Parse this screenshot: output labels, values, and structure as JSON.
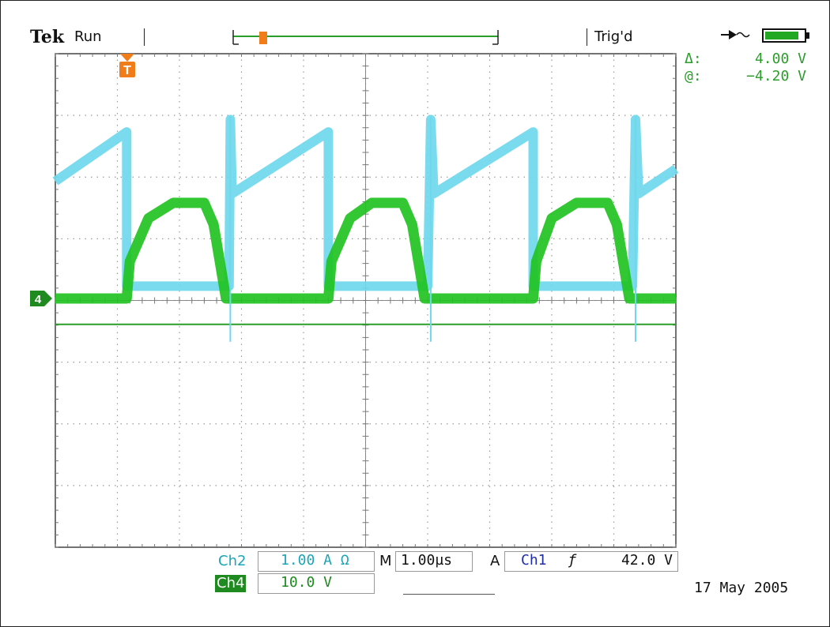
{
  "header": {
    "brand": "Tek",
    "run_state": "Run",
    "trigger_status": "Trig'd",
    "trigger_marker": "T"
  },
  "cursor_readout": {
    "delta_label": "Δ:",
    "delta_value": "4.00 V",
    "at_label": "@:",
    "at_value": "−4.20 V"
  },
  "ground_marker": "4",
  "footer": {
    "ch2_label": "Ch2",
    "ch2_scale": "1.00 A Ω",
    "ch4_label": "Ch4",
    "ch4_scale": "10.0 V",
    "timebase_label": "M",
    "timebase_value": "1.00µs",
    "trigger_mode": "A",
    "trigger_source": "Ch1",
    "trigger_slope": "ƒ",
    "trigger_level": "42.0 V",
    "date": "17 May 2005"
  },
  "colors": {
    "ch2": "#6ed8ec",
    "ch4": "#22c322",
    "cursor": "#2a9d2a",
    "trigger": "#f07d1a",
    "ch1": "#1e2ea8"
  },
  "chart_data": {
    "type": "line",
    "title": "",
    "xlabel": "",
    "ylabel": "",
    "grid": true,
    "x_divisions": 10,
    "y_divisions": 8,
    "xlim": [
      0,
      10
    ],
    "ylim": [
      -4,
      4
    ],
    "period_div": 3.25,
    "series": [
      {
        "channel": "Ch2",
        "note": "inductor current sawtooth (div)",
        "points": [
          [
            0,
            1.9
          ],
          [
            1.15,
            2.7
          ],
          [
            1.15,
            0.2
          ],
          [
            2.8,
            0.2
          ],
          [
            2.82,
            2.9
          ],
          [
            2.85,
            1.7
          ],
          [
            4.4,
            2.7
          ],
          [
            4.4,
            0.2
          ],
          [
            6.0,
            0.2
          ],
          [
            6.05,
            2.9
          ],
          [
            6.1,
            1.7
          ],
          [
            7.7,
            2.7
          ],
          [
            7.7,
            0.2
          ],
          [
            9.3,
            0.2
          ],
          [
            9.35,
            2.9
          ],
          [
            9.4,
            1.7
          ],
          [
            10,
            2.1
          ]
        ]
      },
      {
        "channel": "Ch4",
        "note": "switch-node voltage pulses (div)",
        "points": [
          [
            0,
            0
          ],
          [
            1.15,
            0
          ],
          [
            1.2,
            0.6
          ],
          [
            1.5,
            1.3
          ],
          [
            1.9,
            1.55
          ],
          [
            2.4,
            1.55
          ],
          [
            2.55,
            1.2
          ],
          [
            2.75,
            0
          ],
          [
            4.4,
            0
          ],
          [
            4.45,
            0.6
          ],
          [
            4.75,
            1.3
          ],
          [
            5.1,
            1.55
          ],
          [
            5.6,
            1.55
          ],
          [
            5.75,
            1.2
          ],
          [
            5.95,
            0
          ],
          [
            7.7,
            0
          ],
          [
            7.75,
            0.6
          ],
          [
            8.0,
            1.3
          ],
          [
            8.4,
            1.55
          ],
          [
            8.9,
            1.55
          ],
          [
            9.05,
            1.2
          ],
          [
            9.25,
            0
          ],
          [
            10,
            0
          ]
        ]
      },
      {
        "channel": "Cursor",
        "note": "horizontal voltage cursor (div)",
        "points": [
          [
            0,
            -0.42
          ],
          [
            10,
            -0.42
          ]
        ]
      }
    ]
  }
}
